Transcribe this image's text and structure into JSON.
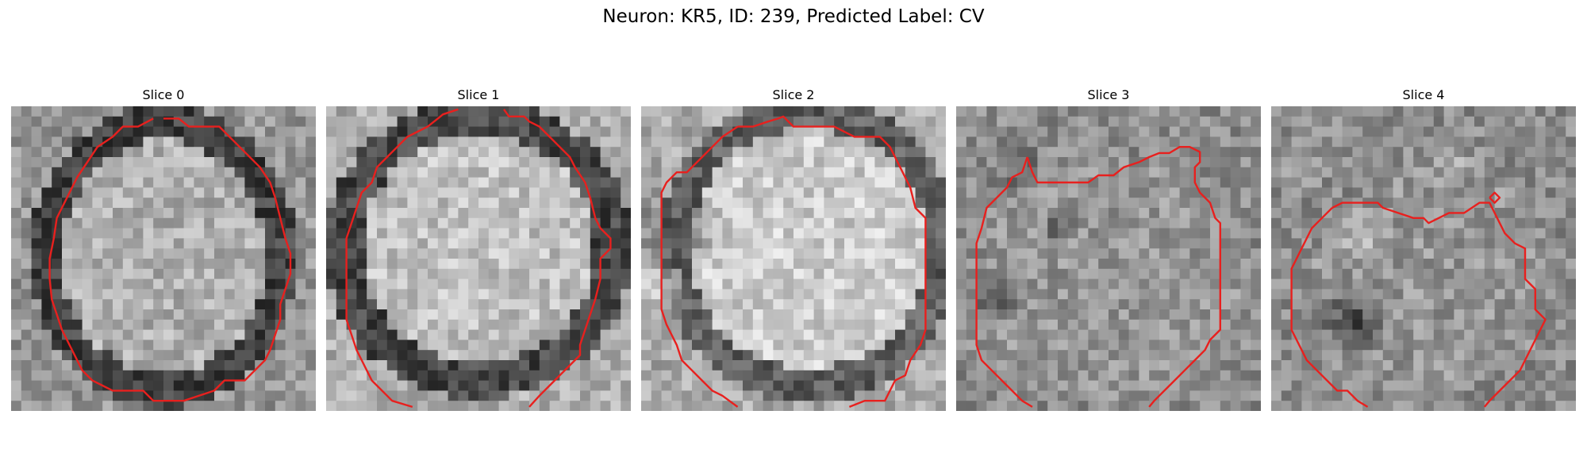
{
  "figure": {
    "title": "Neuron: KR5, ID: 239, Predicted Label: CV",
    "contour_color": "#e8201e",
    "panels": [
      {
        "label": "Slice 0"
      },
      {
        "label": "Slice 1"
      },
      {
        "label": "Slice 2"
      },
      {
        "label": "Slice 3"
      },
      {
        "label": "Slice 4"
      }
    ]
  }
}
